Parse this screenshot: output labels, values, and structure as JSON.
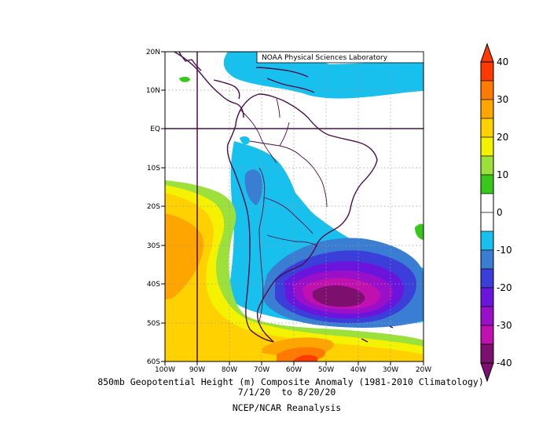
{
  "credit": "NOAA Physical Sciences Laboratory",
  "caption": {
    "title": "850mb Geopotential Height (m) Composite Anomaly (1981-2010 Climatology)",
    "dates": "7/1/20  to 8/20/20",
    "source": "NCEP/NCAR Reanalysis"
  },
  "map": {
    "lon_labels": [
      "100W",
      "90W",
      "80W",
      "70W",
      "60W",
      "50W",
      "40W",
      "30W",
      "20W"
    ],
    "lat_labels": [
      "20N",
      "10N",
      "EQ",
      "10S",
      "20S",
      "30S",
      "40S",
      "50S",
      "60S"
    ],
    "lon_range": [
      -100,
      -20
    ],
    "lat_range": [
      -60,
      20
    ],
    "highlighted_lines": [
      "EQ",
      "90W"
    ]
  },
  "colorbar": {
    "labels": [
      "40",
      "30",
      "20",
      "10",
      "0",
      "-10",
      "-20",
      "-30",
      "-40"
    ],
    "colors": [
      "#ff3a00",
      "#ff7a00",
      "#ffa500",
      "#ffd100",
      "#f5f200",
      "#9ce03c",
      "#39c71c",
      "#ffffff",
      "#ffffff",
      "#18c0ee",
      "#3a7ed4",
      "#3b3ed8",
      "#6a14dc",
      "#9a10c8",
      "#c010b0",
      "#7d0f6e"
    ]
  }
}
